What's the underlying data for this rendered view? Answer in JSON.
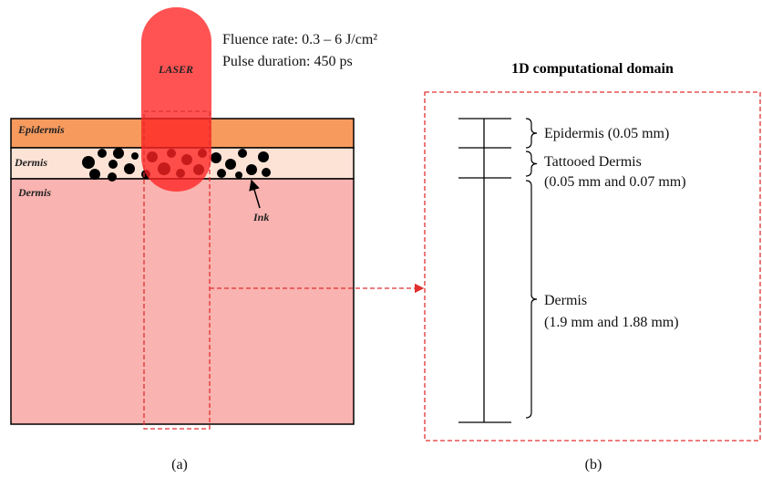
{
  "panel_a": {
    "laser": "LASER",
    "fluence": "Fluence rate: 0.3 – 6 J/cm²",
    "pulse": "Pulse duration: 450 ps",
    "layers": [
      "Epidermis",
      "Dermis",
      "Dermis"
    ],
    "ink": "Ink",
    "caption": "(a)"
  },
  "panel_b": {
    "title": "1D computational domain",
    "labels": [
      [
        "Epidermis (0.05 mm)"
      ],
      [
        "Tattooed Dermis",
        "(0.05 mm and 0.07 mm)"
      ],
      [
        "Dermis",
        "(1.9 mm and 1.88 mm)"
      ]
    ],
    "caption": "(b)"
  }
}
